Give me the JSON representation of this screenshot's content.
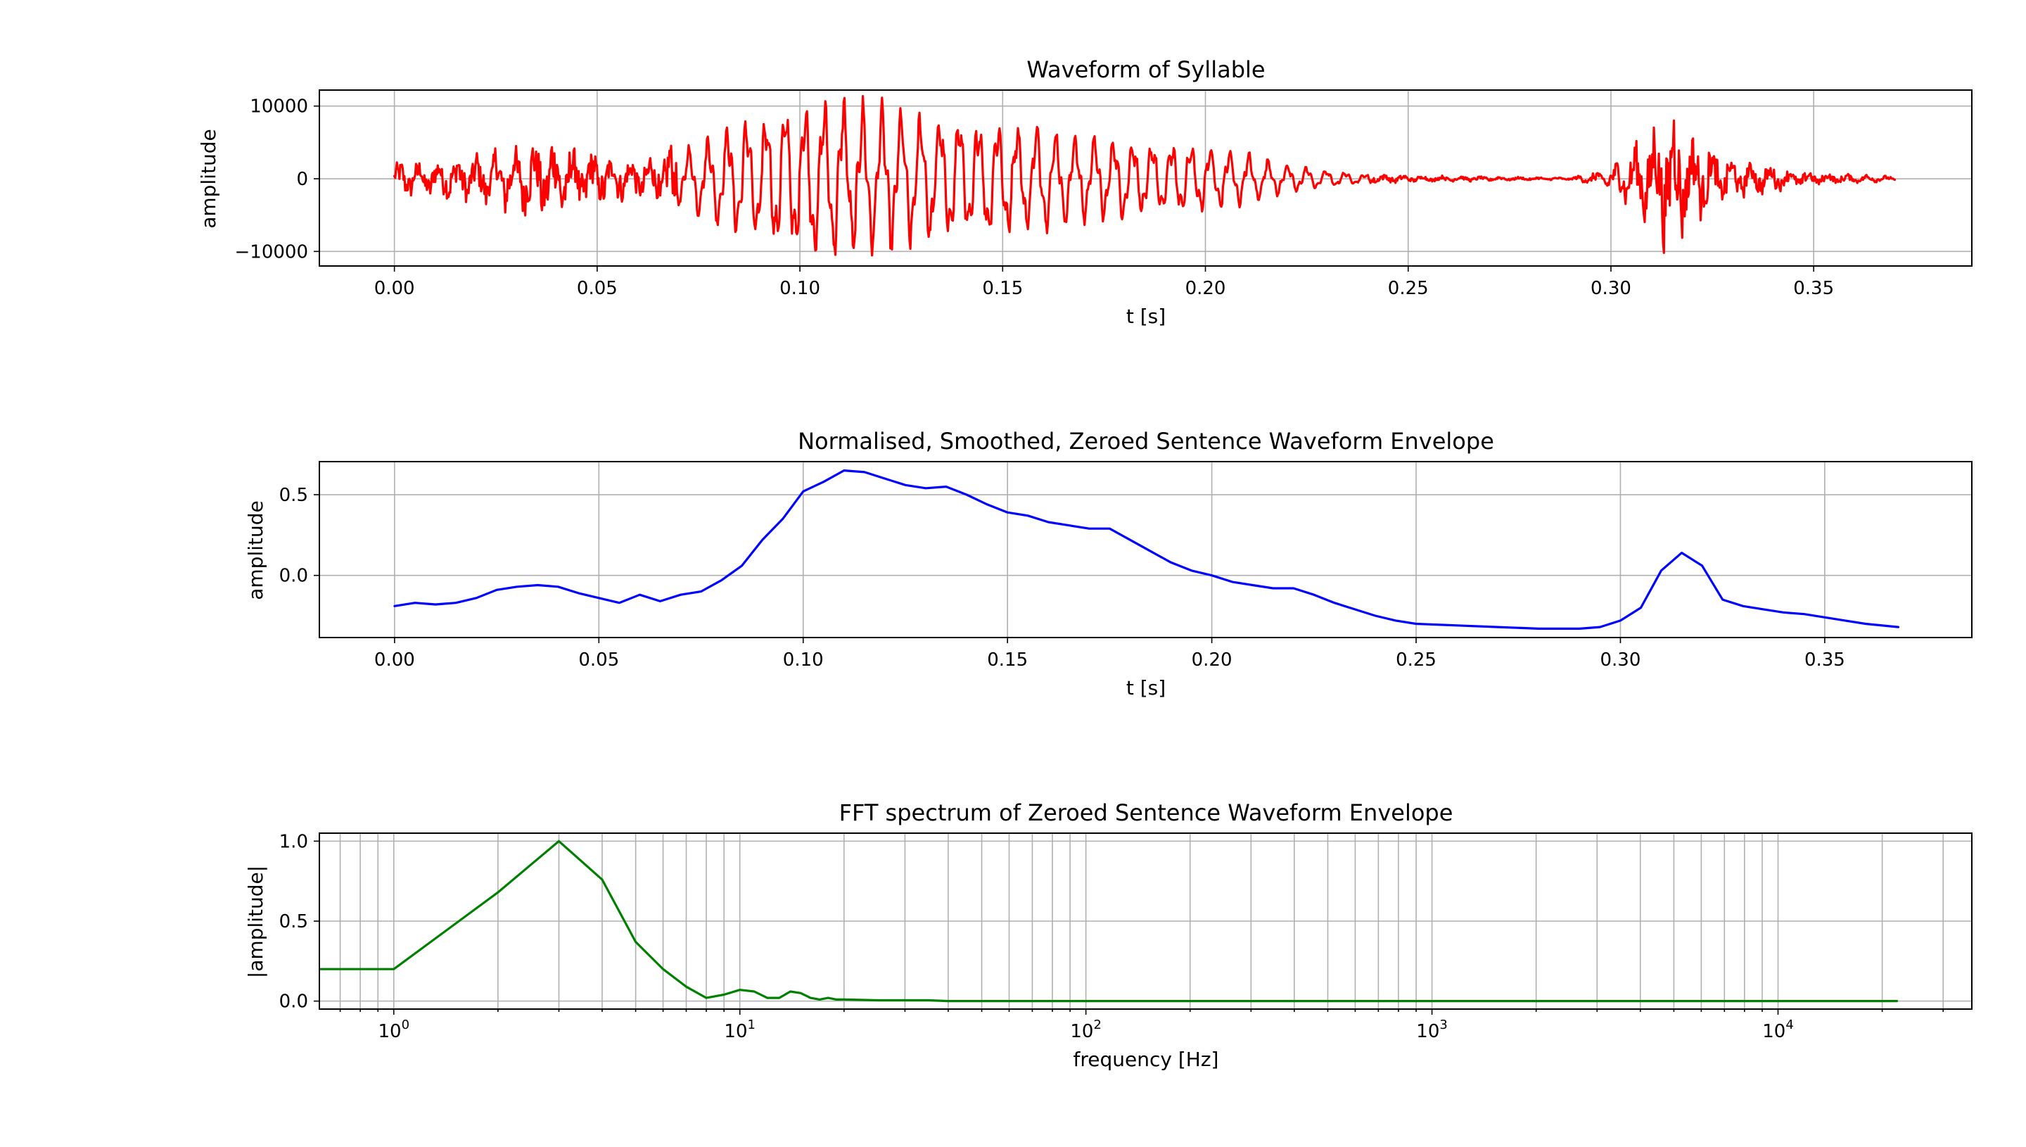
{
  "chart_data": [
    {
      "type": "line",
      "title": "Waveform of Syllable",
      "xlabel": "t [s]",
      "ylabel": "amplitude",
      "xscale": "linear",
      "xlim": [
        -0.0185,
        0.389
      ],
      "ylim": [
        -12000,
        12200
      ],
      "xticks": [
        0.0,
        0.05,
        0.1,
        0.15,
        0.2,
        0.25,
        0.3,
        0.35
      ],
      "xtick_labels": [
        "0.00",
        "0.05",
        "0.10",
        "0.15",
        "0.20",
        "0.25",
        "0.30",
        "0.35"
      ],
      "yticks": [
        -10000,
        0,
        10000
      ],
      "ytick_labels": [
        "−10000",
        "0",
        "10000"
      ],
      "grid": true,
      "color": "#ff0000",
      "series": [
        {
          "kind": "oscillation",
          "x_start": 0.0,
          "x_end": 0.37,
          "envelope": {
            "x": [
              0.0,
              0.01,
              0.02,
              0.03,
              0.04,
              0.05,
              0.06,
              0.07,
              0.08,
              0.09,
              0.1,
              0.11,
              0.12,
              0.13,
              0.14,
              0.15,
              0.16,
              0.17,
              0.18,
              0.19,
              0.2,
              0.21,
              0.22,
              0.23,
              0.24,
              0.25,
              0.29,
              0.3,
              0.31,
              0.315,
              0.32,
              0.33,
              0.34,
              0.35,
              0.37
            ],
            "y": [
              1500,
              1800,
              2200,
              3200,
              3800,
              2500,
              1800,
              3500,
              6500,
              9000,
              10500,
              11000,
              10000,
              9000,
              8500,
              8000,
              7000,
              6000,
              5500,
              5000,
              4500,
              3500,
              2000,
              1200,
              500,
              300,
              100,
              1000,
              4500,
              6500,
              4000,
              2000,
              1200,
              600,
              200
            ]
          }
        }
      ]
    },
    {
      "type": "line",
      "title": "Normalised, Smoothed, Zeroed Sentence Waveform Envelope",
      "xlabel": "t [s]",
      "ylabel": "amplitude",
      "xscale": "linear",
      "xlim": [
        -0.0184,
        0.386
      ],
      "ylim": [
        -0.385,
        0.705
      ],
      "xticks": [
        0.0,
        0.05,
        0.1,
        0.15,
        0.2,
        0.25,
        0.3,
        0.35
      ],
      "xtick_labels": [
        "0.00",
        "0.05",
        "0.10",
        "0.15",
        "0.20",
        "0.25",
        "0.30",
        "0.35"
      ],
      "yticks": [
        0.0,
        0.5
      ],
      "ytick_labels": [
        "0.0",
        "0.5"
      ],
      "grid": true,
      "color": "#0000ff",
      "series": [
        {
          "x": [
            0.0,
            0.005,
            0.01,
            0.015,
            0.02,
            0.025,
            0.03,
            0.035,
            0.04,
            0.045,
            0.05,
            0.055,
            0.06,
            0.065,
            0.07,
            0.075,
            0.08,
            0.085,
            0.09,
            0.095,
            0.1,
            0.105,
            0.11,
            0.115,
            0.12,
            0.125,
            0.13,
            0.135,
            0.14,
            0.145,
            0.15,
            0.155,
            0.16,
            0.165,
            0.17,
            0.175,
            0.18,
            0.185,
            0.19,
            0.195,
            0.2,
            0.205,
            0.21,
            0.215,
            0.22,
            0.225,
            0.23,
            0.235,
            0.24,
            0.245,
            0.25,
            0.26,
            0.27,
            0.28,
            0.29,
            0.295,
            0.3,
            0.305,
            0.31,
            0.315,
            0.32,
            0.325,
            0.33,
            0.335,
            0.34,
            0.345,
            0.35,
            0.355,
            0.36,
            0.368
          ],
          "y": [
            -0.19,
            -0.17,
            -0.18,
            -0.17,
            -0.14,
            -0.09,
            -0.07,
            -0.06,
            -0.07,
            -0.11,
            -0.14,
            -0.17,
            -0.12,
            -0.16,
            -0.12,
            -0.1,
            -0.03,
            0.06,
            0.22,
            0.35,
            0.52,
            0.58,
            0.65,
            0.64,
            0.6,
            0.56,
            0.54,
            0.55,
            0.5,
            0.44,
            0.39,
            0.37,
            0.33,
            0.31,
            0.29,
            0.29,
            0.22,
            0.15,
            0.08,
            0.03,
            0.0,
            -0.04,
            -0.06,
            -0.08,
            -0.08,
            -0.12,
            -0.17,
            -0.21,
            -0.25,
            -0.28,
            -0.3,
            -0.31,
            -0.32,
            -0.33,
            -0.33,
            -0.32,
            -0.28,
            -0.2,
            0.03,
            0.14,
            0.06,
            -0.15,
            -0.19,
            -0.21,
            -0.23,
            -0.24,
            -0.26,
            -0.28,
            -0.3,
            -0.32
          ]
        }
      ]
    },
    {
      "type": "line",
      "title": "FFT spectrum of Zeroed Sentence Waveform Envelope",
      "xlabel": "frequency [Hz]",
      "ylabel": "|amplitude|",
      "xscale": "log",
      "xlim_log10": [
        -0.215,
        4.56
      ],
      "ylim": [
        -0.05,
        1.05
      ],
      "xticks_log10": [
        0,
        1,
        2,
        3,
        4
      ],
      "xtick_labels": [
        "10",
        "10",
        "10",
        "10",
        "10"
      ],
      "xtick_exponents": [
        "0",
        "1",
        "2",
        "3",
        "4"
      ],
      "yticks": [
        0.0,
        0.5,
        1.0
      ],
      "ytick_labels": [
        "0.0",
        "0.5",
        "1.0"
      ],
      "grid": true,
      "color": "#008000",
      "series": [
        {
          "x": [
            0.6,
            1,
            2,
            3,
            4,
            5,
            6,
            7,
            8,
            9,
            10,
            11,
            12,
            13,
            14,
            15,
            16,
            17,
            18,
            19,
            20,
            25,
            30,
            35,
            40,
            22050
          ],
          "y": [
            0.2,
            0.2,
            0.68,
            1.0,
            0.76,
            0.37,
            0.2,
            0.09,
            0.02,
            0.04,
            0.07,
            0.06,
            0.02,
            0.02,
            0.06,
            0.05,
            0.02,
            0.01,
            0.02,
            0.01,
            0.01,
            0.005,
            0.005,
            0.005,
            0.0,
            0.0
          ]
        }
      ]
    }
  ]
}
